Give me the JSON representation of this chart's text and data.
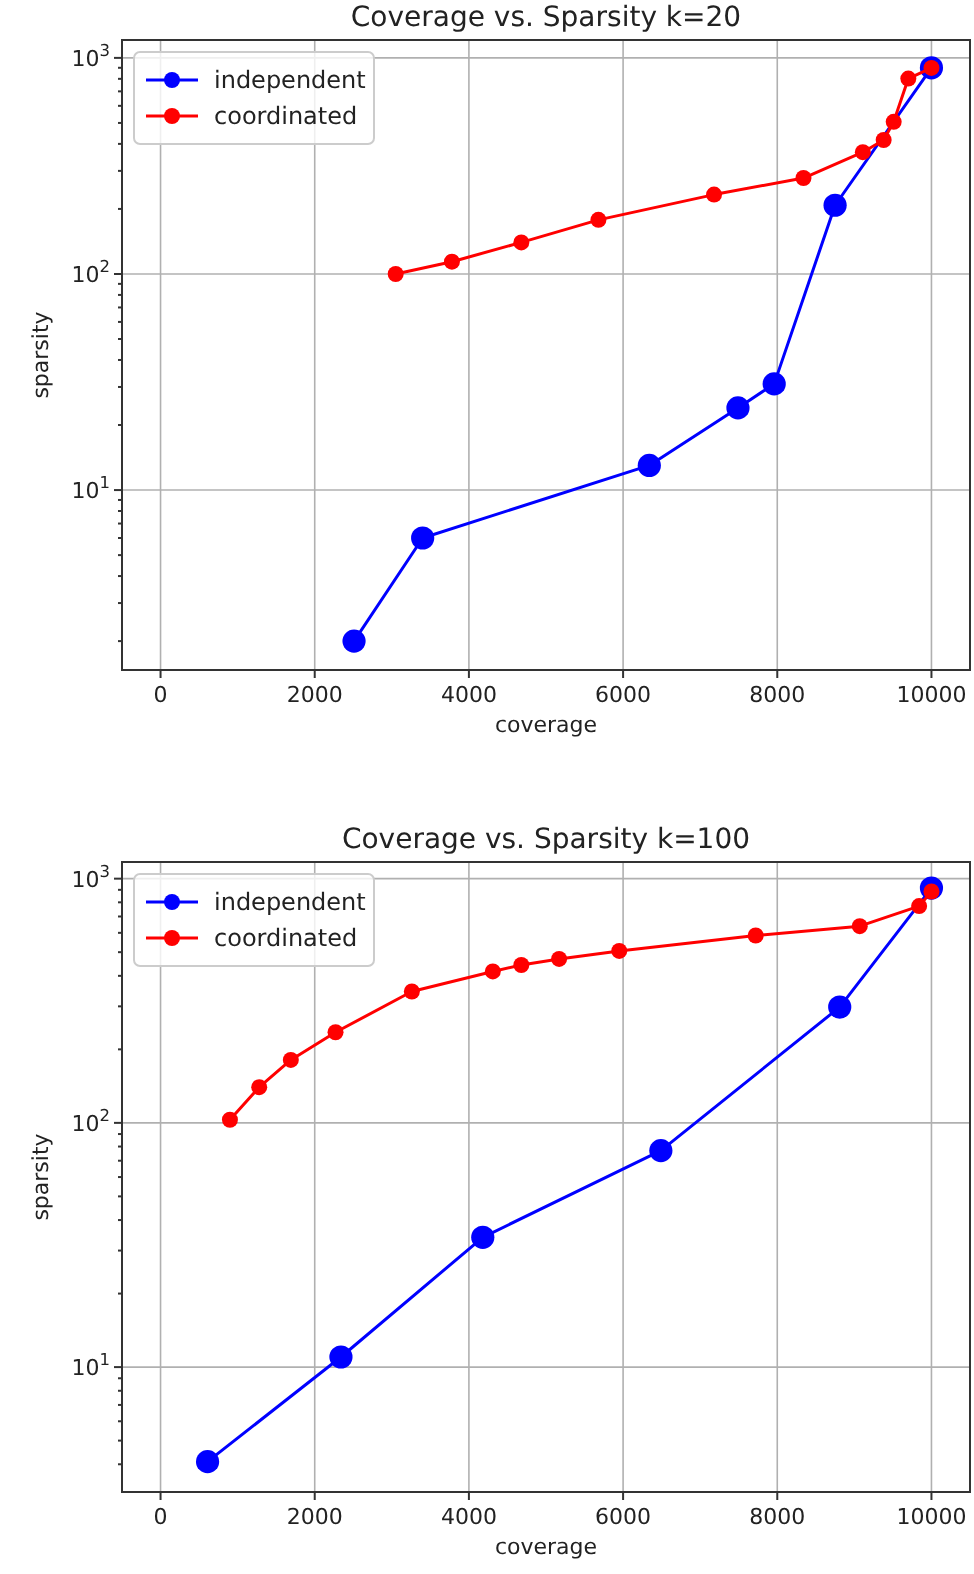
{
  "chart_data": [
    {
      "type": "line",
      "title": "Coverage vs. Sparsity k=20",
      "xlabel": "coverage",
      "ylabel": "sparsity",
      "log": "y",
      "grid": true,
      "legend": "top left",
      "marker": "circle",
      "line_style": "solid",
      "xlim": [
        -500,
        10500
      ],
      "xticks": [
        0,
        2000,
        4000,
        6000,
        8000,
        10000
      ],
      "ylim": [
        1.47,
        1210
      ],
      "yticks": [
        {
          "value": 2,
          "label": null
        },
        {
          "value": 3,
          "label": null
        },
        {
          "value": 4,
          "label": null
        },
        {
          "value": 5,
          "label": null
        },
        {
          "value": 6,
          "label": null
        },
        {
          "value": 7,
          "label": null
        },
        {
          "value": 8,
          "label": null
        },
        {
          "value": 9,
          "label": null
        },
        {
          "value": 10,
          "label": "10$^{1}$"
        },
        {
          "value": 20,
          "label": null
        },
        {
          "value": 30,
          "label": null
        },
        {
          "value": 40,
          "label": null
        },
        {
          "value": 50,
          "label": null
        },
        {
          "value": 60,
          "label": null
        },
        {
          "value": 70,
          "label": null
        },
        {
          "value": 80,
          "label": null
        },
        {
          "value": 90,
          "label": null
        },
        {
          "value": 100,
          "label": "10$^{2}$"
        },
        {
          "value": 200,
          "label": null
        },
        {
          "value": 300,
          "label": null
        },
        {
          "value": 400,
          "label": null
        },
        {
          "value": 500,
          "label": null
        },
        {
          "value": 600,
          "label": null
        },
        {
          "value": 700,
          "label": null
        },
        {
          "value": 800,
          "label": null
        },
        {
          "value": 900,
          "label": null
        },
        {
          "value": 1000,
          "label": "10$^{3}$"
        }
      ],
      "series": [
        {
          "name": "independent",
          "color": "#0000ff",
          "x": [
            2510,
            3400,
            6340,
            7490,
            7960,
            8750,
            10000
          ],
          "values": [
            2,
            6,
            13,
            24,
            31,
            208,
            900
          ]
        },
        {
          "name": "coordinated",
          "color": "#ff0000",
          "x": [
            3050,
            3780,
            4680,
            5680,
            7180,
            8340,
            9110,
            9380,
            9510,
            9700,
            10000
          ],
          "values": [
            100,
            114,
            140,
            178,
            233,
            278,
            366,
            417,
            506,
            802,
            899
          ]
        }
      ]
    },
    {
      "type": "line",
      "title": "Coverage vs. Sparsity k=100",
      "xlabel": "coverage",
      "ylabel": "sparsity",
      "log": "y",
      "grid": true,
      "legend": "top left",
      "marker": "circle",
      "line_style": "solid",
      "xlim": [
        -500,
        10500
      ],
      "xticks": [
        0,
        2000,
        4000,
        6000,
        8000,
        10000
      ],
      "ylim": [
        3.08,
        1170
      ],
      "yticks": [
        {
          "value": 4,
          "label": null
        },
        {
          "value": 5,
          "label": null
        },
        {
          "value": 6,
          "label": null
        },
        {
          "value": 7,
          "label": null
        },
        {
          "value": 8,
          "label": null
        },
        {
          "value": 9,
          "label": null
        },
        {
          "value": 10,
          "label": "10$^{1}$"
        },
        {
          "value": 20,
          "label": null
        },
        {
          "value": 30,
          "label": null
        },
        {
          "value": 40,
          "label": null
        },
        {
          "value": 50,
          "label": null
        },
        {
          "value": 60,
          "label": null
        },
        {
          "value": 70,
          "label": null
        },
        {
          "value": 80,
          "label": null
        },
        {
          "value": 90,
          "label": null
        },
        {
          "value": 100,
          "label": "10$^{2}$"
        },
        {
          "value": 200,
          "label": null
        },
        {
          "value": 300,
          "label": null
        },
        {
          "value": 400,
          "label": null
        },
        {
          "value": 500,
          "label": null
        },
        {
          "value": 600,
          "label": null
        },
        {
          "value": 700,
          "label": null
        },
        {
          "value": 800,
          "label": null
        },
        {
          "value": 900,
          "label": null
        },
        {
          "value": 1000,
          "label": "10$^{3}$"
        }
      ],
      "series": [
        {
          "name": "independent",
          "color": "#0000ff",
          "x": [
            610,
            2340,
            4180,
            6490,
            8810,
            10000
          ],
          "values": [
            4.1,
            11,
            34,
            77,
            298,
            915
          ]
        },
        {
          "name": "coordinated",
          "color": "#ff0000",
          "x": [
            900,
            1280,
            1690,
            2270,
            3260,
            4310,
            4680,
            5170,
            5950,
            7720,
            9070,
            9840,
            10000
          ],
          "values": [
            103,
            140,
            181,
            235,
            345,
            417,
            443,
            469,
            506,
            585,
            639,
            772,
            886
          ]
        }
      ]
    }
  ]
}
